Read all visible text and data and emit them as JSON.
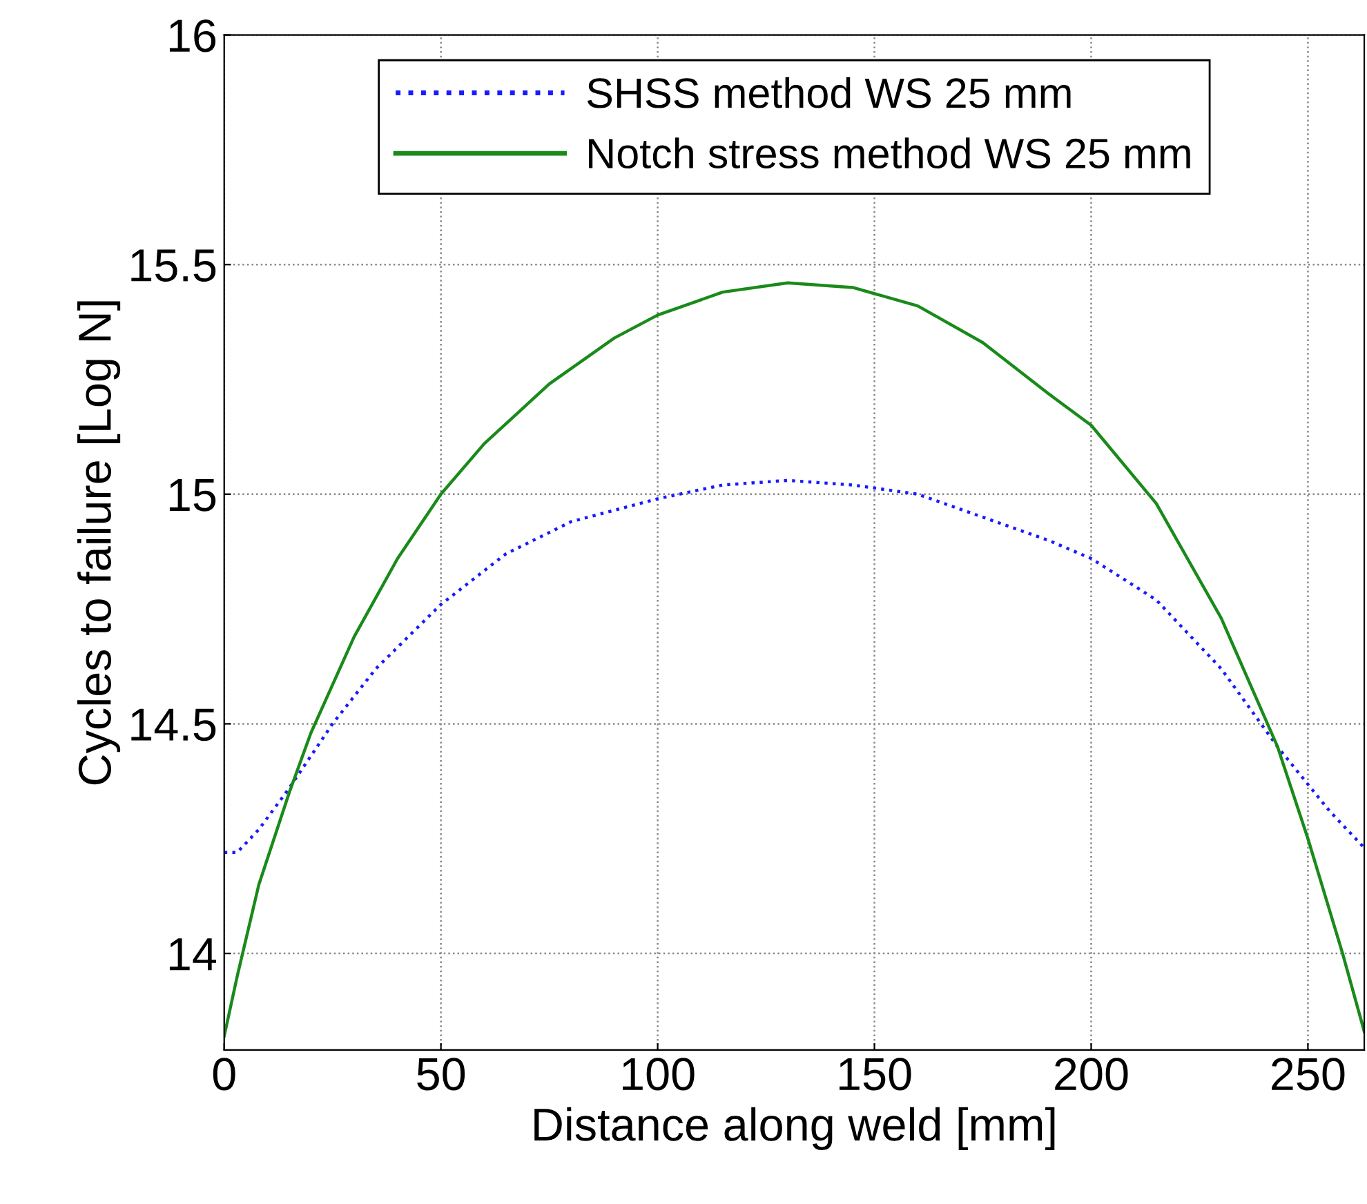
{
  "chart_data": {
    "type": "line",
    "xlabel": "Distance along weld [mm]",
    "ylabel": "Cycles to failure [Log N]",
    "xlim": [
      0,
      263
    ],
    "ylim": [
      13.79,
      16
    ],
    "xticks": [
      0,
      50,
      100,
      150,
      200,
      250
    ],
    "yticks": [
      14,
      14.5,
      15,
      15.5,
      16
    ],
    "grid": true,
    "legend": "top",
    "series": [
      {
        "name": "SHSS method WS 25 mm",
        "color": "#1a1aff",
        "line_style": "dotted",
        "x": [
          0,
          3,
          8,
          15,
          25,
          35,
          50,
          65,
          80,
          100,
          115,
          130,
          145,
          160,
          175,
          190,
          200,
          215,
          230,
          243,
          255,
          263
        ],
        "values": [
          14.22,
          14.22,
          14.27,
          14.36,
          14.5,
          14.62,
          14.76,
          14.87,
          14.94,
          14.99,
          15.02,
          15.03,
          15.02,
          15.0,
          14.95,
          14.9,
          14.86,
          14.77,
          14.62,
          14.45,
          14.31,
          14.23
        ]
      },
      {
        "name": "Notch stress method WS 25 mm",
        "color": "#1a8a1a",
        "line_style": "solid",
        "x": [
          0,
          3,
          8,
          15,
          20,
          30,
          40,
          50,
          60,
          75,
          90,
          100,
          115,
          130,
          145,
          160,
          175,
          190,
          200,
          215,
          230,
          243,
          250,
          258,
          263
        ],
        "values": [
          13.82,
          13.95,
          14.15,
          14.35,
          14.48,
          14.69,
          14.86,
          15.0,
          15.11,
          15.24,
          15.34,
          15.39,
          15.44,
          15.46,
          15.45,
          15.41,
          15.33,
          15.22,
          15.15,
          14.98,
          14.73,
          14.45,
          14.25,
          14.0,
          13.83
        ]
      }
    ]
  }
}
